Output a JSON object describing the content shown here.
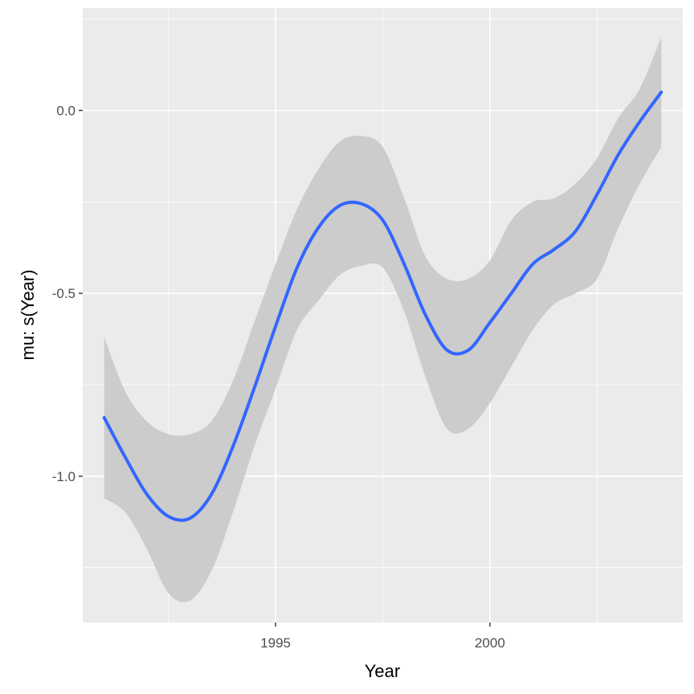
{
  "chart_data": {
    "type": "line",
    "title": "",
    "xlabel": "Year",
    "ylabel": "mu: s(Year)",
    "xlim": [
      1990.5,
      2004.5
    ],
    "ylim": [
      -1.4,
      0.28
    ],
    "x_ticks": [
      1995,
      2000
    ],
    "y_ticks": [
      -1.0,
      -0.5,
      0.0
    ],
    "y_tick_labels": [
      "-1.0",
      "-0.5",
      "0.0"
    ],
    "grid": true,
    "legend": "none",
    "colors": {
      "panel": "#ebebeb",
      "grid": "#ffffff",
      "line": "#3366ff",
      "band": "#cccccc"
    },
    "series": [
      {
        "x": [
          1991.0,
          1991.5,
          1992.0,
          1992.5,
          1993.0,
          1993.5,
          1994.0,
          1994.5,
          1995.0,
          1995.5,
          1996.0,
          1996.5,
          1997.0,
          1997.5,
          1998.0,
          1998.5,
          1999.0,
          1999.5,
          2000.0,
          2000.5,
          2001.0,
          2001.5,
          2002.0,
          2002.5,
          2003.0,
          2003.5,
          2004.0
        ],
        "y": [
          -0.84,
          -0.95,
          -1.05,
          -1.11,
          -1.115,
          -1.05,
          -0.92,
          -0.76,
          -0.59,
          -0.43,
          -0.32,
          -0.26,
          -0.255,
          -0.3,
          -0.42,
          -0.56,
          -0.655,
          -0.655,
          -0.58,
          -0.5,
          -0.42,
          -0.38,
          -0.33,
          -0.23,
          -0.12,
          -0.03,
          0.05
        ],
        "lower": [
          -1.06,
          -1.1,
          -1.2,
          -1.32,
          -1.34,
          -1.26,
          -1.1,
          -0.92,
          -0.76,
          -0.6,
          -0.52,
          -0.45,
          -0.425,
          -0.43,
          -0.55,
          -0.73,
          -0.87,
          -0.87,
          -0.8,
          -0.7,
          -0.6,
          -0.53,
          -0.5,
          -0.46,
          -0.32,
          -0.2,
          -0.1
        ],
        "upper": [
          -0.62,
          -0.77,
          -0.85,
          -0.885,
          -0.885,
          -0.85,
          -0.74,
          -0.58,
          -0.42,
          -0.27,
          -0.16,
          -0.085,
          -0.07,
          -0.1,
          -0.24,
          -0.4,
          -0.46,
          -0.46,
          -0.41,
          -0.3,
          -0.25,
          -0.24,
          -0.2,
          -0.13,
          -0.02,
          0.06,
          0.2
        ]
      }
    ]
  }
}
